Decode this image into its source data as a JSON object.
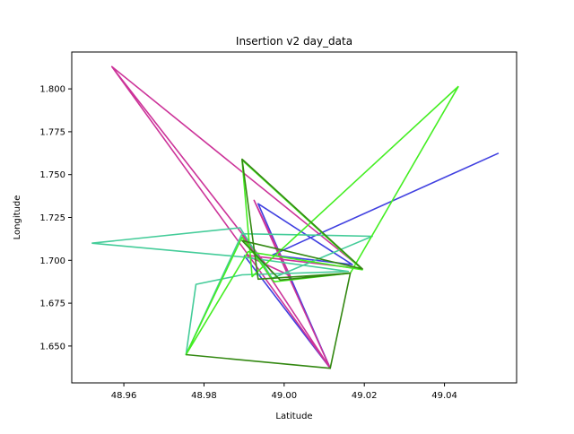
{
  "chart_data": {
    "type": "line",
    "title": "Insertion v2 day_data",
    "xlabel": "Latitude",
    "ylabel": "Longitude",
    "xlim": [
      48.947,
      49.058
    ],
    "ylim": [
      1.6285,
      1.8215
    ],
    "x_ticks": [
      48.96,
      48.98,
      49.0,
      49.02,
      49.04
    ],
    "x_tick_labels": [
      "48.96",
      "48.98",
      "49.00",
      "49.02",
      "49.04"
    ],
    "y_ticks": [
      1.65,
      1.675,
      1.7,
      1.725,
      1.75,
      1.775,
      1.8
    ],
    "y_tick_labels": [
      "1.650",
      "1.675",
      "1.700",
      "1.725",
      "1.750",
      "1.775",
      "1.800"
    ],
    "grid": false,
    "legend": "none",
    "series": [
      {
        "color": "#4040e0",
        "x": [
          49.0535,
          49.0045,
          48.997,
          49.017,
          48.9935,
          49.0115,
          48.99
        ],
        "y": [
          1.7625,
          1.711,
          1.703,
          1.6975,
          1.733,
          1.637,
          1.703
        ]
      },
      {
        "color": "#cc3399",
        "x": [
          48.957,
          48.997,
          48.9895,
          49.0115,
          48.9925,
          49.0015,
          48.9905,
          49.0195,
          48.957,
          49.0115
        ],
        "y": [
          1.813,
          1.693,
          1.715,
          1.637,
          1.735,
          1.691,
          1.703,
          1.695,
          1.813,
          1.637
        ]
      },
      {
        "color": "#44cc99",
        "x": [
          48.952,
          48.989,
          48.997,
          49.022,
          48.9895,
          48.9755,
          48.978,
          48.9895,
          49.016,
          48.9895,
          48.952
        ],
        "y": [
          1.71,
          1.719,
          1.6895,
          1.714,
          1.7155,
          1.645,
          1.686,
          1.6915,
          1.6935,
          1.702,
          1.71
        ]
      },
      {
        "color": "#44ee22",
        "x": [
          49.0435,
          48.992,
          48.9895,
          49.0195,
          48.991,
          48.9755,
          48.9895,
          48.9975,
          49.0165,
          49.0435
        ],
        "y": [
          1.8015,
          1.6905,
          1.7585,
          1.6945,
          1.705,
          1.645,
          1.7135,
          1.6875,
          1.6925,
          1.8015
        ]
      },
      {
        "color": "#338811",
        "x": [
          48.9755,
          49.0115,
          49.0165,
          48.9935,
          48.9895,
          49.0195,
          48.9895,
          48.999,
          49.0165
        ],
        "y": [
          1.645,
          1.637,
          1.6925,
          1.689,
          1.759,
          1.695,
          1.7115,
          1.6885,
          1.6925
        ]
      }
    ]
  }
}
